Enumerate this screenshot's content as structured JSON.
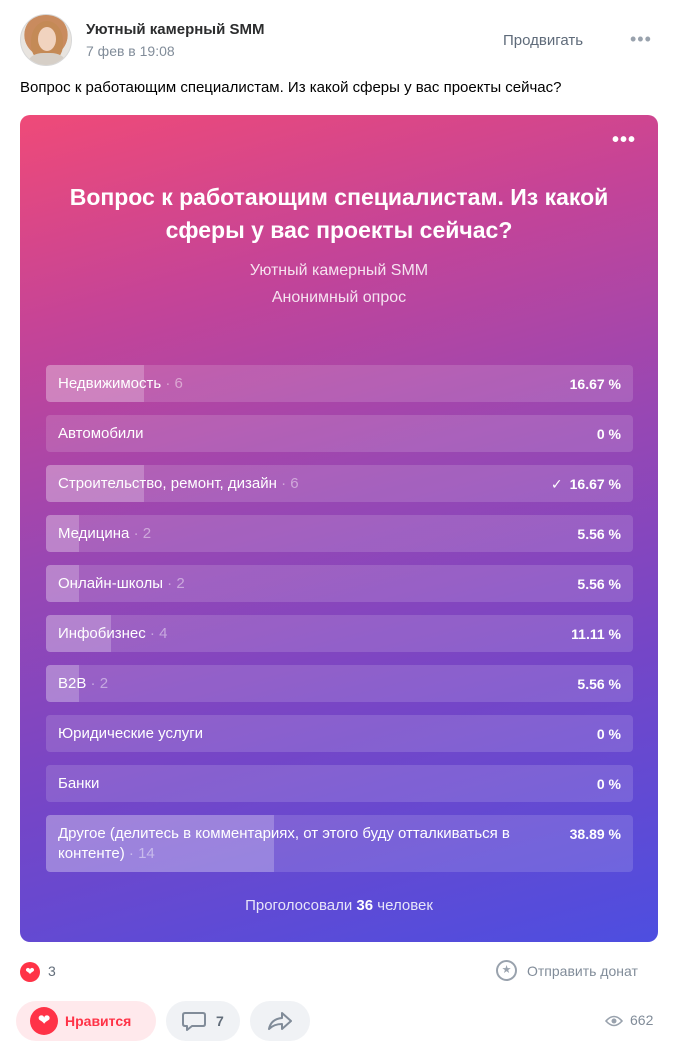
{
  "post": {
    "author": "Уютный камерный SMM",
    "date": "7 фев в 19:08",
    "promote_label": "Продвигать",
    "more_label": "•••",
    "text": "Вопрос к работающим специалистам. Из какой сферы у вас проекты сейчас?"
  },
  "poll": {
    "more_label": "•••",
    "question": "Вопрос к работающим специалистам. Из какой сферы у вас проекты сейчас?",
    "author": "Уютный камерный SMM",
    "type": "Анонимный опрос",
    "total_prefix": "Проголосовали",
    "total_votes": "36",
    "total_suffix": "человек",
    "options": [
      {
        "label": "Недвижимость",
        "count": " · 6",
        "percent": "16.67 %",
        "fraction": 0.1667,
        "selected": false
      },
      {
        "label": "Автомобили",
        "count": "",
        "percent": "0 %",
        "fraction": 0,
        "selected": false
      },
      {
        "label": "Строительство, ремонт, дизайн",
        "count": " · 6",
        "percent": "16.67 %",
        "fraction": 0.1667,
        "selected": true
      },
      {
        "label": "Медицина",
        "count": " · 2",
        "percent": "5.56 %",
        "fraction": 0.0556,
        "selected": false
      },
      {
        "label": "Онлайн-школы",
        "count": " · 2",
        "percent": "5.56 %",
        "fraction": 0.0556,
        "selected": false
      },
      {
        "label": "Инфобизнес",
        "count": " · 4",
        "percent": "11.11 %",
        "fraction": 0.1111,
        "selected": false
      },
      {
        "label": "B2B",
        "count": " · 2",
        "percent": "5.56 %",
        "fraction": 0.0556,
        "selected": false
      },
      {
        "label": "Юридические услуги",
        "count": "",
        "percent": "0 %",
        "fraction": 0,
        "selected": false
      },
      {
        "label": "Банки",
        "count": "",
        "percent": "0 %",
        "fraction": 0,
        "selected": false
      },
      {
        "label": "Другое (делитесь в комментариях, от этого буду отталкиваться в контенте)",
        "count": " · 14",
        "percent": "38.89 %",
        "fraction": 0.3889,
        "selected": false
      }
    ]
  },
  "footer": {
    "likes_count": "3",
    "donate_label": "Отправить донат",
    "like_button_label": "Нравится",
    "comments_count": "7",
    "views_count": "662"
  },
  "icons": {
    "heart": "heart-icon",
    "gift": "gift-icon",
    "comment": "comment-icon",
    "share": "share-icon",
    "eye": "eye-icon",
    "check": "check-icon"
  },
  "colors": {
    "like_red": "#ff3347",
    "poll_gradient_start": "#ef4a78",
    "poll_gradient_end": "#4d4ee0"
  }
}
